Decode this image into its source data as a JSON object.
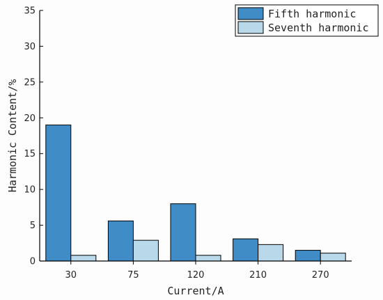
{
  "chart_data": {
    "type": "bar",
    "categories": [
      "30",
      "75",
      "120",
      "210",
      "270"
    ],
    "series": [
      {
        "name": "Fifth harmonic",
        "values": [
          19.0,
          5.6,
          8.0,
          3.1,
          1.5
        ],
        "color": "#3f8cc7"
      },
      {
        "name": "Seventh harmonic",
        "values": [
          0.8,
          2.9,
          0.8,
          2.3,
          1.1
        ],
        "color": "#b9d9ea"
      }
    ],
    "xlabel": "Current/A",
    "ylabel": "Harmonic Content/%",
    "ylim": [
      0,
      35
    ],
    "yticks": [
      0,
      5,
      10,
      15,
      20,
      25,
      30,
      35
    ],
    "grid": false,
    "legend_position": "top-right"
  }
}
